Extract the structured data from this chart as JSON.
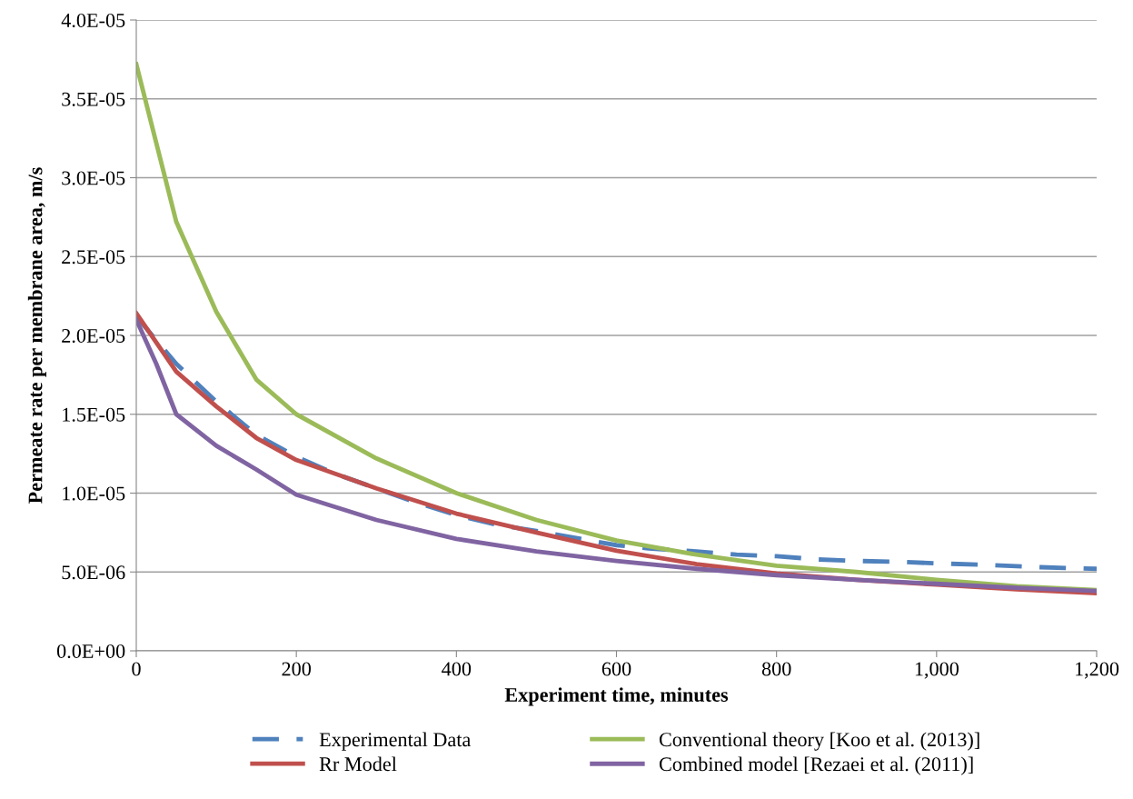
{
  "chart_data": {
    "type": "line",
    "xlabel": "Experiment time, minutes",
    "ylabel": "Permeate rate per membrane area, m/s",
    "xlim": [
      0,
      1200
    ],
    "xticks": [
      0,
      200,
      400,
      600,
      800,
      {
        "value": 1000,
        "label": "1,000"
      },
      {
        "value": 1200,
        "label": "1,200"
      }
    ],
    "ylim": [
      0,
      4e-05
    ],
    "yticks": [
      {
        "value": 0,
        "label": "0.0E+00"
      },
      {
        "value": 5e-06,
        "label": "5.0E-06"
      },
      {
        "value": 1e-05,
        "label": "1.0E-05"
      },
      {
        "value": 1.5e-05,
        "label": "1.5E-05"
      },
      {
        "value": 2e-05,
        "label": "2.0E-05"
      },
      {
        "value": 2.5e-05,
        "label": "2.5E-05"
      },
      {
        "value": 3e-05,
        "label": "3.0E-05"
      },
      {
        "value": 3.5e-05,
        "label": "3.5E-05"
      },
      {
        "value": 4e-05,
        "label": "4.0E-05"
      }
    ],
    "grid": "y",
    "legend": "bottom",
    "marker": "none",
    "series": [
      {
        "name": "Experimental Data",
        "color": "#4f81bd",
        "line_style": "dashed",
        "x": [
          0,
          50,
          100,
          150,
          200,
          250,
          300,
          350,
          400,
          450,
          500,
          600,
          640,
          700,
          750,
          800,
          850,
          900,
          950,
          1000,
          1060,
          1130,
          1200
        ],
        "values": [
          2.12e-05,
          1.82e-05,
          1.58e-05,
          1.37e-05,
          1.23e-05,
          1.12e-05,
          1.03e-05,
          9.4e-06,
          8.6e-06,
          8e-06,
          7.6e-06,
          6.7e-06,
          6.5e-06,
          6.3e-06,
          6.1e-06,
          6e-06,
          5.8e-06,
          5.7e-06,
          5.65e-06,
          5.55e-06,
          5.45e-06,
          5.3e-06,
          5.2e-06
        ]
      },
      {
        "name": "Rr Model",
        "color": "#c0504d",
        "line_style": "solid",
        "x": [
          0,
          50,
          100,
          150,
          200,
          300,
          400,
          500,
          600,
          700,
          800,
          900,
          1000,
          1100,
          1200
        ],
        "values": [
          2.14e-05,
          1.77e-05,
          1.55e-05,
          1.35e-05,
          1.21e-05,
          1.03e-05,
          8.7e-06,
          7.5e-06,
          6.35e-06,
          5.5e-06,
          4.9e-06,
          4.5e-06,
          4.2e-06,
          3.9e-06,
          3.65e-06
        ]
      },
      {
        "name": "Conventional theory [Koo et al. (2013)]",
        "color": "#9bbb59",
        "line_style": "solid",
        "x": [
          0,
          25,
          50,
          100,
          150,
          200,
          300,
          400,
          500,
          600,
          700,
          800,
          900,
          1000,
          1100,
          1200
        ],
        "values": [
          3.72e-05,
          3.22e-05,
          2.72e-05,
          2.15e-05,
          1.72e-05,
          1.5e-05,
          1.22e-05,
          1e-05,
          8.3e-06,
          7e-06,
          6.1e-06,
          5.4e-06,
          5e-06,
          4.5e-06,
          4.1e-06,
          3.85e-06
        ]
      },
      {
        "name": "Combined model [Rezaei et al. (2011)]",
        "color": "#8064a2",
        "line_style": "solid",
        "x": [
          0,
          25,
          50,
          100,
          150,
          200,
          300,
          400,
          500,
          600,
          700,
          800,
          900,
          1000,
          1100,
          1200
        ],
        "values": [
          2.1e-05,
          1.82e-05,
          1.5e-05,
          1.3e-05,
          1.15e-05,
          9.9e-06,
          8.3e-06,
          7.1e-06,
          6.3e-06,
          5.7e-06,
          5.2e-06,
          4.8e-06,
          4.5e-06,
          4.25e-06,
          4e-06,
          3.8e-06
        ]
      }
    ]
  }
}
